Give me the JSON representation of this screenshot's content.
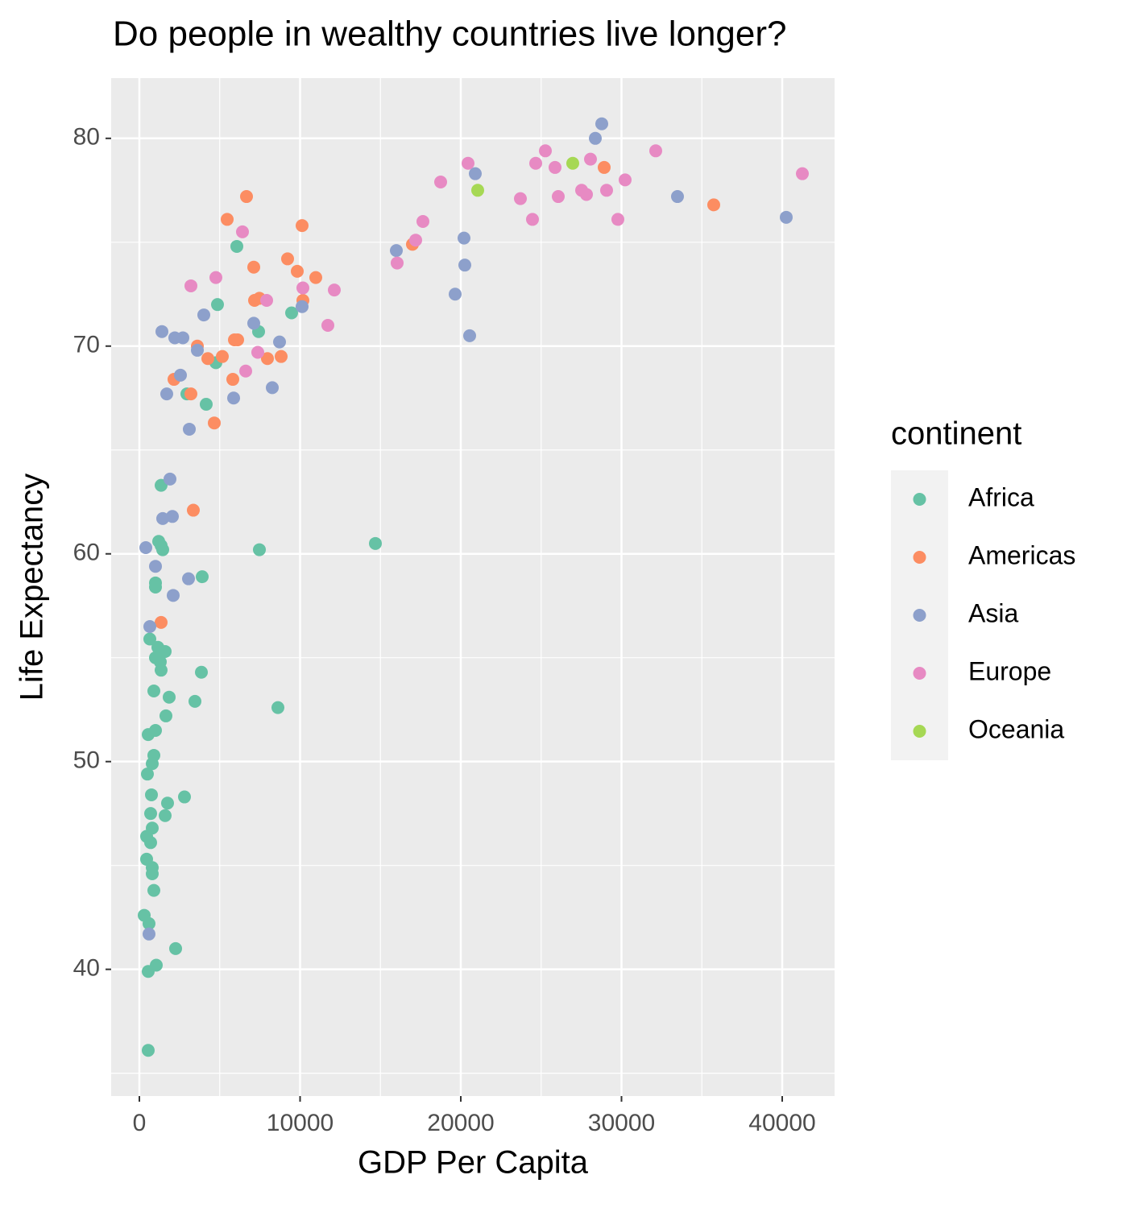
{
  "chart_data": {
    "type": "scatter",
    "title": "Do people in wealthy countries live longer?",
    "x_label": "GDP Per Capita",
    "y_label": "Life Expectancy",
    "xlim": [
      -1754,
      43258
    ],
    "ylim": [
      33.9,
      82.9
    ],
    "xticks": [
      0,
      10000,
      20000,
      30000,
      40000
    ],
    "yticks": [
      40,
      50,
      60,
      70,
      80
    ],
    "grid": true,
    "legend_title": "continent",
    "legend_position": "right",
    "series": [
      {
        "name": "Africa",
        "color": "#66c2a5",
        "x": [
          6065,
          4862,
          7419,
          9474,
          4762,
          2957,
          4160,
          1353,
          1203,
          1353,
          1454,
          7469,
          14687,
          3910,
          1003,
          1003,
          652,
          1153,
          1604,
          1003,
          1303,
          1353,
          3860,
          902,
          1855,
          3459,
          8622,
          1654,
          551,
          1003,
          902,
          802,
          501,
          752,
          2807,
          1754,
          702,
          1604,
          802,
          702,
          451,
          451,
          802,
          802,
          902,
          301,
          601,
          2256,
          1053,
          551,
          551
        ],
        "values": [
          74.8,
          72.0,
          70.7,
          71.6,
          69.2,
          67.7,
          67.2,
          63.3,
          60.6,
          60.4,
          60.2,
          60.2,
          60.5,
          58.9,
          58.6,
          58.4,
          55.9,
          55.5,
          55.3,
          55.0,
          54.8,
          54.4,
          54.3,
          53.4,
          53.1,
          52.9,
          52.6,
          52.2,
          51.3,
          51.5,
          50.3,
          49.9,
          49.4,
          48.4,
          48.3,
          48.0,
          47.5,
          47.4,
          46.8,
          46.1,
          46.4,
          45.3,
          44.9,
          44.6,
          43.8,
          42.6,
          42.2,
          41.0,
          40.2,
          39.9,
          36.1
        ]
      },
      {
        "name": "Americas",
        "color": "#fc8d62",
        "x": [
          6667,
          5464,
          10125,
          7118,
          9223,
          9825,
          7168,
          7469,
          10977,
          10175,
          6115,
          5915,
          3609,
          5163,
          4261,
          7970,
          8822,
          2155,
          5815,
          3208,
          4662,
          3358,
          1353,
          16992,
          28922,
          35739
        ],
        "values": [
          77.2,
          76.1,
          75.8,
          73.8,
          74.2,
          73.6,
          72.2,
          72.3,
          73.3,
          72.2,
          70.3,
          70.3,
          70.0,
          69.5,
          69.4,
          69.4,
          69.5,
          68.4,
          68.4,
          67.7,
          66.3,
          62.1,
          56.7,
          74.9,
          78.6,
          76.8
        ]
      },
      {
        "name": "Asia",
        "color": "#8da0cb",
        "x": [
          28772,
          28371,
          20902,
          33483,
          40250,
          20200,
          15990,
          20250,
          19649,
          20551,
          10125,
          7118,
          8722,
          8271,
          4010,
          1404,
          2206,
          2707,
          3609,
          2556,
          1704,
          5865,
          3108,
          1905,
          1454,
          2055,
          401,
          1003,
          3058,
          2105,
          652,
          601
        ],
        "values": [
          80.7,
          80.0,
          78.3,
          77.2,
          76.2,
          75.2,
          74.6,
          73.9,
          72.5,
          70.5,
          71.9,
          71.1,
          70.2,
          68.0,
          71.5,
          70.7,
          70.4,
          70.4,
          69.8,
          68.6,
          67.7,
          67.5,
          66.0,
          63.6,
          61.7,
          61.8,
          60.3,
          59.4,
          58.8,
          58.0,
          56.5,
          41.7
        ]
      },
      {
        "name": "Europe",
        "color": "#e78ac3",
        "x": [
          25263,
          32130,
          24662,
          25865,
          28070,
          20451,
          41253,
          18747,
          30225,
          23709,
          26065,
          27519,
          27819,
          29072,
          24461,
          29774,
          17644,
          17193,
          16040,
          6416,
          3208,
          4762,
          10175,
          12130,
          7920,
          11729,
          7368,
          6617
        ],
        "values": [
          79.4,
          79.4,
          78.8,
          78.6,
          79.0,
          78.8,
          78.3,
          77.9,
          78.0,
          77.1,
          77.2,
          77.5,
          77.3,
          77.5,
          76.1,
          76.1,
          76.0,
          75.1,
          74.0,
          75.5,
          72.9,
          73.3,
          72.8,
          72.7,
          72.2,
          71.0,
          69.7,
          68.8
        ]
      },
      {
        "name": "Oceania",
        "color": "#a6d854",
        "x": [
          26967,
          21053
        ],
        "values": [
          78.8,
          77.5
        ]
      }
    ]
  }
}
